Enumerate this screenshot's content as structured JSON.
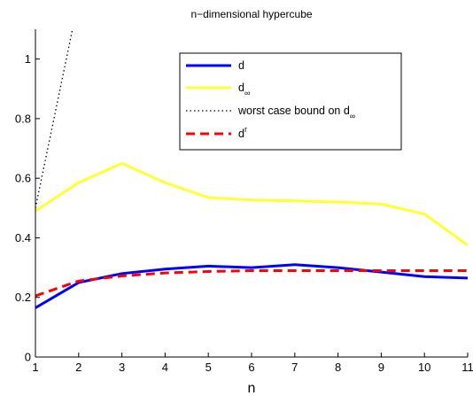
{
  "chart_data": {
    "type": "line",
    "title": "n−dimensional hypercube",
    "xlabel": "n",
    "ylabel": "",
    "xlim": [
      1,
      11
    ],
    "ylim": [
      0,
      1.1
    ],
    "xticks": [
      1,
      2,
      3,
      4,
      5,
      6,
      7,
      8,
      9,
      10,
      11
    ],
    "yticks": [
      0,
      0.2,
      0.4,
      0.6,
      0.8,
      1
    ],
    "ytick_labels": [
      "0",
      "0.2",
      "0.4",
      "0.6",
      "0.8",
      "1"
    ],
    "grid": false,
    "legend_position": "top-center",
    "series": [
      {
        "name": "d",
        "color": "#0000ff",
        "style": "solid",
        "x": [
          1,
          2,
          3,
          4,
          5,
          6,
          7,
          8,
          9,
          10,
          11
        ],
        "y": [
          0.165,
          0.25,
          0.28,
          0.295,
          0.305,
          0.3,
          0.31,
          0.3,
          0.285,
          0.27,
          0.265
        ]
      },
      {
        "name": "d",
        "name_sub": "∞",
        "color": "#ffff33",
        "style": "solid",
        "x": [
          1,
          2,
          3,
          4,
          5,
          6,
          7,
          8,
          9,
          10,
          11
        ],
        "y": [
          0.49,
          0.585,
          0.65,
          0.585,
          0.535,
          0.527,
          0.524,
          0.52,
          0.513,
          0.48,
          0.375
        ]
      },
      {
        "name": "worst case bound on d",
        "name_sub": "∞",
        "color": "#000000",
        "style": "dotted",
        "x": [
          1,
          1.5,
          2
        ],
        "y": [
          0.5,
          0.85,
          1.2
        ]
      },
      {
        "name": "d",
        "name_sup": "r",
        "color": "#ff0000",
        "style": "dashed",
        "x": [
          1,
          2,
          3,
          4,
          5,
          6,
          7,
          8,
          9,
          10,
          11
        ],
        "y": [
          0.205,
          0.255,
          0.272,
          0.282,
          0.287,
          0.29,
          0.29,
          0.29,
          0.29,
          0.29,
          0.29
        ]
      }
    ]
  }
}
